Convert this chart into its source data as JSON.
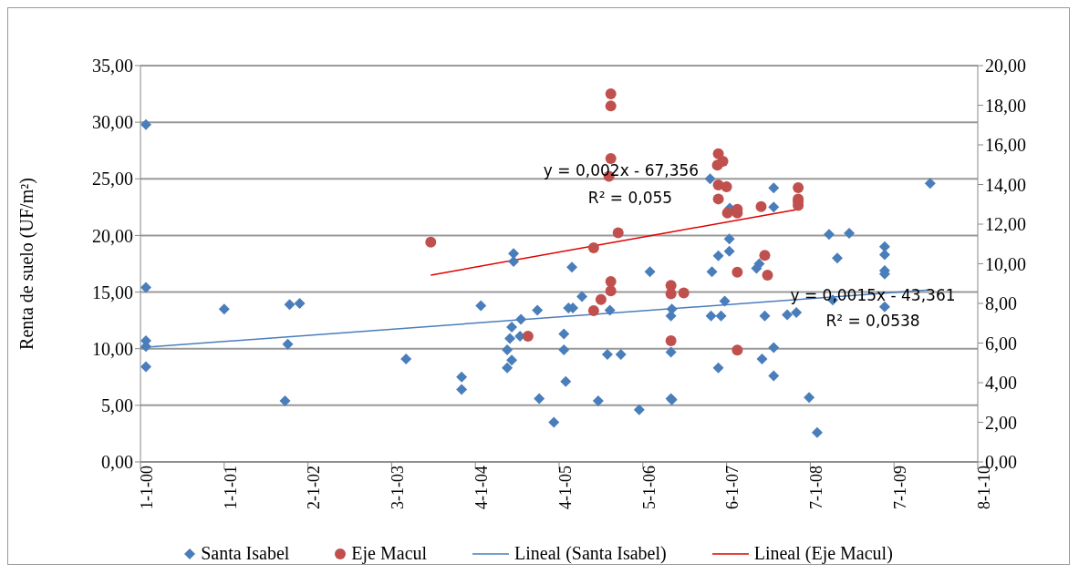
{
  "chart_data": {
    "type": "scatter",
    "ylabel": "Renta de suelo (UF/m²)",
    "xlim": [
      "2000-01-01",
      "2010-01-08"
    ],
    "xticks": [
      {
        "value": "2000-01-01",
        "label": "1-1-00"
      },
      {
        "value": "2001-01-01",
        "label": "1-1-01"
      },
      {
        "value": "2002-01-02",
        "label": "2-1-02"
      },
      {
        "value": "2003-01-03",
        "label": "3-1-03"
      },
      {
        "value": "2004-01-04",
        "label": "4-1-04"
      },
      {
        "value": "2005-01-04",
        "label": "4-1-05"
      },
      {
        "value": "2006-01-05",
        "label": "5-1-06"
      },
      {
        "value": "2007-01-06",
        "label": "6-1-07"
      },
      {
        "value": "2008-01-07",
        "label": "7-1-08"
      },
      {
        "value": "2009-01-07",
        "label": "7-1-09"
      },
      {
        "value": "2010-01-08",
        "label": "8-1-10"
      }
    ],
    "ylim": [
      0,
      35
    ],
    "yticks": [
      {
        "value": 0,
        "label": "0,00"
      },
      {
        "value": 5,
        "label": "5,00"
      },
      {
        "value": 10,
        "label": "10,00"
      },
      {
        "value": 15,
        "label": "15,00"
      },
      {
        "value": 20,
        "label": "20,00"
      },
      {
        "value": 25,
        "label": "25,00"
      },
      {
        "value": 30,
        "label": "30,00"
      },
      {
        "value": 35,
        "label": "35,00"
      }
    ],
    "y2lim": [
      0,
      20
    ],
    "y2ticks": [
      {
        "value": 0,
        "label": "0,00"
      },
      {
        "value": 2,
        "label": "2,00"
      },
      {
        "value": 4,
        "label": "4,00"
      },
      {
        "value": 6,
        "label": "6,00"
      },
      {
        "value": 8,
        "label": "8,00"
      },
      {
        "value": 10,
        "label": "10,00"
      },
      {
        "value": 12,
        "label": "12,00"
      },
      {
        "value": 14,
        "label": "14,00"
      },
      {
        "value": 16,
        "label": "16,00"
      },
      {
        "value": 18,
        "label": "18,00"
      },
      {
        "value": 20,
        "label": "20,00"
      }
    ],
    "grid": "y",
    "legend": "bottom",
    "series": [
      {
        "name": "Santa Isabel",
        "type": "scatter",
        "marker": "diamond",
        "color": "#4a7ebb",
        "x": [
          "2000-01-25",
          "2000-01-25",
          "2000-01-25",
          "2000-01-25",
          "2000-01-25",
          "2001-01-01",
          "2001-10-14",
          "2001-11-27",
          "2001-10-06",
          "2001-09-24",
          "2003-03-07",
          "2004-01-28",
          "2003-11-05",
          "2003-11-05",
          "2004-06-19",
          "2004-06-19",
          "2004-07-21",
          "2004-06-11",
          "2004-06-03",
          "2004-07-17",
          "2004-05-22",
          "2004-06-11",
          "2004-05-22",
          "2004-10-01",
          "2004-10-09",
          "2004-12-12",
          "2005-01-25",
          "2005-01-25",
          "2005-02-02",
          "2005-02-14",
          "2005-03-05",
          "2005-03-01",
          "2005-04-14",
          "2005-06-24",
          "2005-08-14",
          "2005-08-03",
          "2005-10-01",
          "2005-12-20",
          "2006-02-05",
          "2006-05-08",
          "2006-05-08",
          "2006-05-08",
          "2006-05-12",
          "2006-05-12",
          "2006-10-26",
          "2006-11-03",
          "2006-10-30",
          "2006-12-13",
          "2006-12-01",
          "2006-12-01",
          "2007-01-18",
          "2007-01-18",
          "2006-12-29",
          "2007-01-20",
          "2007-05-17",
          "2007-05-29",
          "2007-06-22",
          "2007-06-10",
          "2007-07-31",
          "2007-07-31",
          "2007-07-31",
          "2007-07-31",
          "2007-09-28",
          "2007-11-07",
          "2008-01-02",
          "2008-02-06",
          "2008-03-29",
          "2008-04-14",
          "2008-05-04",
          "2008-06-25",
          "2008-11-27",
          "2008-11-27",
          "2008-11-27",
          "2008-11-27",
          "2008-11-27",
          "2009-06-14"
        ],
        "values": [
          29.8,
          15.4,
          10.7,
          10.2,
          8.4,
          13.5,
          13.9,
          14.0,
          10.4,
          5.4,
          9.1,
          13.8,
          7.5,
          6.4,
          18.4,
          17.7,
          12.6,
          11.9,
          10.9,
          11.1,
          9.9,
          9.0,
          8.3,
          13.4,
          5.6,
          3.5,
          11.3,
          9.9,
          7.1,
          13.6,
          13.6,
          17.2,
          14.6,
          5.4,
          13.4,
          9.5,
          9.5,
          4.6,
          16.8,
          12.9,
          9.7,
          5.6,
          13.5,
          5.5,
          25.0,
          16.8,
          12.9,
          12.9,
          8.3,
          18.2,
          19.7,
          18.6,
          14.2,
          22.4,
          17.1,
          17.5,
          12.9,
          9.1,
          24.2,
          22.5,
          10.1,
          7.6,
          13.0,
          13.2,
          5.7,
          2.6,
          20.1,
          14.3,
          18.0,
          20.2,
          19.0,
          18.3,
          16.9,
          16.6,
          13.7,
          24.6
        ]
      },
      {
        "name": "Eje Macul",
        "type": "scatter",
        "marker": "circle",
        "axis": "y2",
        "color": "#c0504d",
        "x": [
          "2003-06-23",
          "2005-08-18",
          "2005-08-18",
          "2005-08-18",
          "2005-08-10",
          "2005-09-19",
          "2005-06-04",
          "2005-08-18",
          "2005-08-18",
          "2005-07-06",
          "2005-06-04",
          "2004-08-21",
          "2006-05-08",
          "2006-05-08",
          "2006-05-08",
          "2006-07-03",
          "2006-12-01",
          "2006-12-21",
          "2006-11-27",
          "2006-12-01",
          "2007-01-06",
          "2006-12-01",
          "2007-01-10",
          "2007-02-22",
          "2007-02-22",
          "2007-06-06",
          "2007-11-15",
          "2007-11-15",
          "2007-11-15",
          "2007-11-15",
          "2007-06-22",
          "2007-07-04",
          "2007-02-22",
          "2007-02-22"
        ],
        "values": [
          11.09,
          18.58,
          17.96,
          15.31,
          14.41,
          11.56,
          10.81,
          9.1,
          8.63,
          8.2,
          7.63,
          6.35,
          8.91,
          8.48,
          6.11,
          8.53,
          15.55,
          15.17,
          14.98,
          13.98,
          13.89,
          13.27,
          12.56,
          12.75,
          12.56,
          12.89,
          13.84,
          13.27,
          13.13,
          12.94,
          10.43,
          9.43,
          9.57,
          5.64
        ]
      },
      {
        "name": "Lineal (Santa Isabel)",
        "type": "line",
        "line_style": "solid",
        "marker": "none",
        "color": "#4a7ebb",
        "x": [
          "2000-01-01",
          "2009-06-14"
        ],
        "values": [
          10.1,
          15.2
        ]
      },
      {
        "name": "Lineal (Eje Macul)",
        "type": "line",
        "line_style": "solid",
        "marker": "none",
        "axis": "y2",
        "color": "#e00000",
        "x": [
          "2003-06-23",
          "2007-11-15"
        ],
        "values": [
          9.43,
          12.75
        ]
      }
    ],
    "annotations": [
      "y = 0,002x - 67,356",
      "R² = 0,055",
      "y = 0,0015x - 43,361",
      "R² = 0,0538"
    ]
  }
}
